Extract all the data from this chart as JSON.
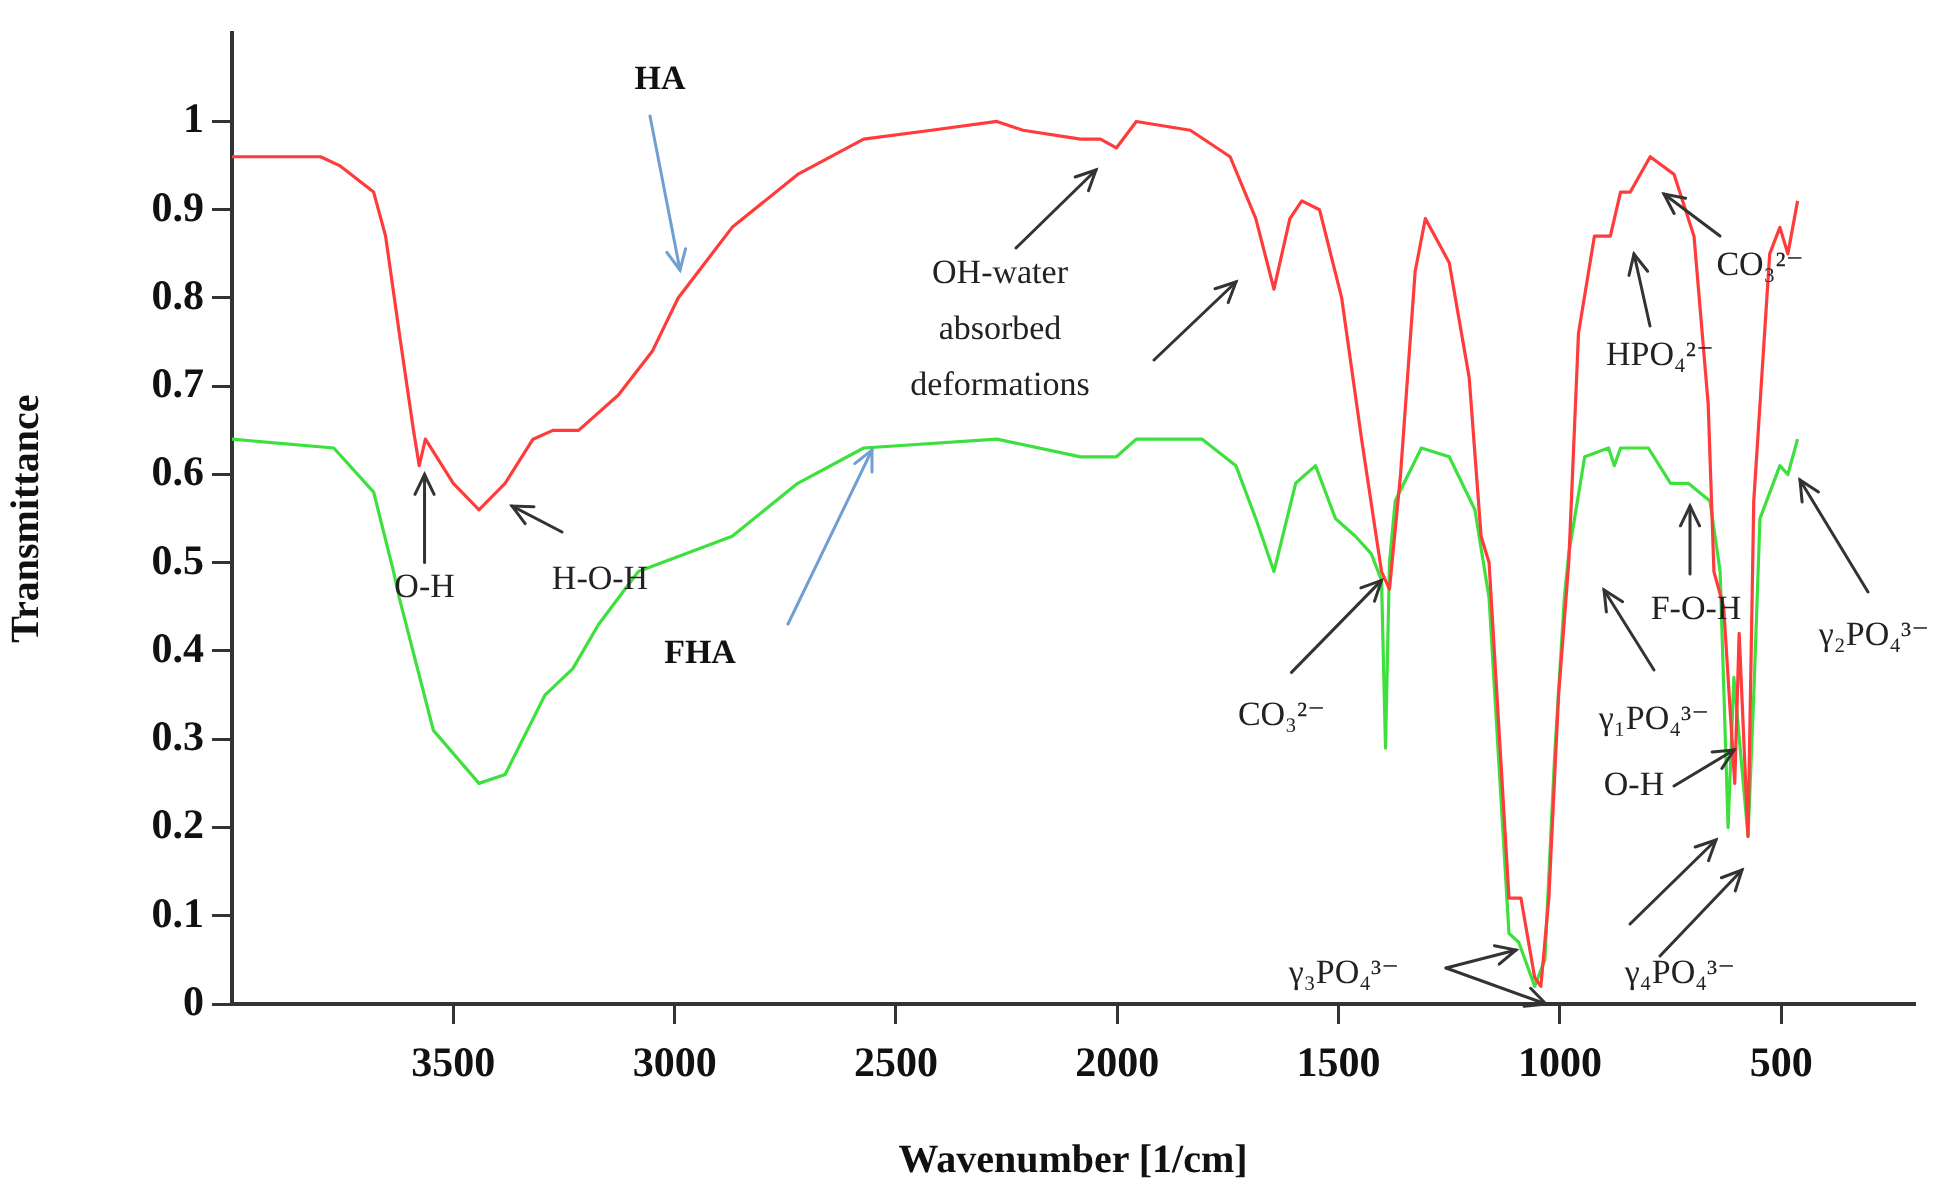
{
  "chart_data": {
    "type": "line",
    "xlabel": "Wavenumber [1/cm]",
    "ylabel": "Transmittance",
    "xlim": [
      4000,
      200
    ],
    "xticks": [
      3500,
      3000,
      2500,
      2000,
      1500,
      1000,
      500
    ],
    "ylim": [
      0,
      1.1
    ],
    "yticks": [
      0,
      0.1,
      0.2,
      0.3,
      0.4,
      0.5,
      0.6,
      0.7,
      0.8,
      0.9,
      1
    ],
    "grid": false,
    "legend": false,
    "marker": "none",
    "line_style": "solid",
    "series": [
      {
        "name": "HA",
        "color": "#ff3b3b",
        "x": [
          4000,
          3800,
          3757,
          3680,
          3653,
          3622,
          3590,
          3577,
          3563,
          3500,
          3442,
          3383,
          3320,
          3275,
          3217,
          3127,
          3050,
          2992,
          2870,
          2722,
          2573,
          2420,
          2272,
          2213,
          2083,
          2038,
          2002,
          1957,
          1835,
          1745,
          1687,
          1646,
          1610,
          1583,
          1543,
          1493,
          1448,
          1403,
          1385,
          1360,
          1327,
          1304,
          1250,
          1205,
          1178,
          1160,
          1115,
          1088,
          1057,
          1043,
          1025,
          1003,
          980,
          958,
          922,
          886,
          863,
          841,
          796,
          742,
          697,
          665,
          652,
          630,
          605,
          595,
          575,
          562,
          526,
          503,
          485,
          463
        ],
        "values": [
          0.96,
          0.96,
          0.95,
          0.92,
          0.87,
          0.76,
          0.65,
          0.61,
          0.64,
          0.59,
          0.56,
          0.59,
          0.64,
          0.65,
          0.65,
          0.69,
          0.74,
          0.8,
          0.88,
          0.94,
          0.98,
          0.99,
          1,
          0.99,
          0.98,
          0.98,
          0.97,
          1,
          0.99,
          0.96,
          0.89,
          0.81,
          0.89,
          0.91,
          0.9,
          0.8,
          0.64,
          0.49,
          0.47,
          0.6,
          0.83,
          0.89,
          0.84,
          0.71,
          0.53,
          0.5,
          0.12,
          0.12,
          0.03,
          0.02,
          0.12,
          0.35,
          0.5,
          0.76,
          0.87,
          0.87,
          0.92,
          0.92,
          0.96,
          0.94,
          0.87,
          0.68,
          0.49,
          0.45,
          0.25,
          0.42,
          0.19,
          0.57,
          0.85,
          0.88,
          0.85,
          0.91
        ]
      },
      {
        "name": "FHA",
        "color": "#3ee03e",
        "x": [
          4000,
          3770,
          3680,
          3635,
          3622,
          3545,
          3442,
          3383,
          3293,
          3230,
          3172,
          3082,
          2870,
          2722,
          2573,
          2272,
          2083,
          2002,
          1957,
          1808,
          1732,
          1687,
          1646,
          1597,
          1552,
          1507,
          1462,
          1426,
          1403,
          1394,
          1385,
          1372,
          1313,
          1250,
          1192,
          1160,
          1147,
          1115,
          1093,
          1057,
          1034,
          1012,
          990,
          980,
          944,
          890,
          877,
          863,
          800,
          750,
          710,
          661,
          638,
          620,
          607,
          575,
          562,
          548,
          503,
          485,
          463
        ],
        "values": [
          0.64,
          0.63,
          0.58,
          0.49,
          0.46,
          0.31,
          0.25,
          0.26,
          0.35,
          0.38,
          0.43,
          0.49,
          0.53,
          0.59,
          0.63,
          0.64,
          0.62,
          0.62,
          0.64,
          0.64,
          0.61,
          0.55,
          0.49,
          0.59,
          0.61,
          0.55,
          0.53,
          0.51,
          0.48,
          0.29,
          0.5,
          0.57,
          0.63,
          0.62,
          0.56,
          0.46,
          0.35,
          0.08,
          0.07,
          0.02,
          0.05,
          0.28,
          0.46,
          0.51,
          0.62,
          0.63,
          0.61,
          0.63,
          0.63,
          0.59,
          0.59,
          0.57,
          0.49,
          0.2,
          0.37,
          0.19,
          0.35,
          0.55,
          0.61,
          0.6,
          0.64
        ]
      }
    ],
    "annotations": [
      {
        "text": "O-H",
        "x": 3565,
        "y": 0.6
      },
      "H-O-H",
      "OH-water absorbed deformations",
      "HPO₄²⁻",
      "CO₃²⁻",
      {
        "text": "CO₃²⁻",
        "x": 1403,
        "y": 0.48
      },
      "F-O-H",
      "γ₁PO₄³⁻",
      "O-H",
      "γ₂PO₄³⁻",
      "γ₃PO₄³⁻",
      "γ₄PO₄³⁻"
    ]
  }
}
